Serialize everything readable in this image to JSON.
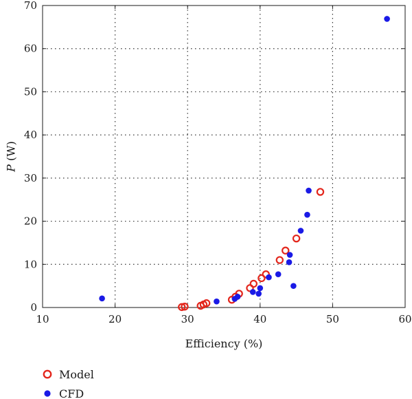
{
  "chart_data": {
    "type": "scatter",
    "xlabel": "Efficiency (%)",
    "ylabel_italic": "P",
    "ylabel_rest": " (W)",
    "xlim": [
      10,
      60
    ],
    "ylim": [
      0,
      70
    ],
    "xticks": [
      10,
      20,
      30,
      40,
      50,
      60
    ],
    "yticks": [
      0,
      10,
      20,
      30,
      40,
      50,
      60,
      70
    ],
    "grid": true,
    "grid_style": "dotted",
    "legend_position": "bottom-left, below plot",
    "series": [
      {
        "name": "Model",
        "marker": "open-circle",
        "color": "#e3261c",
        "points": [
          [
            29.2,
            0.1
          ],
          [
            29.6,
            0.2
          ],
          [
            31.8,
            0.4
          ],
          [
            32.2,
            0.7
          ],
          [
            32.6,
            1.0
          ],
          [
            36.1,
            1.8
          ],
          [
            36.6,
            2.5
          ],
          [
            37.1,
            3.2
          ],
          [
            38.6,
            4.5
          ],
          [
            39.1,
            5.5
          ],
          [
            40.2,
            6.8
          ],
          [
            40.8,
            7.7
          ],
          [
            42.7,
            11.0
          ],
          [
            43.5,
            13.2
          ],
          [
            45.0,
            16.0
          ],
          [
            48.3,
            26.8
          ]
        ]
      },
      {
        "name": "CFD",
        "marker": "filled-circle",
        "color": "#1a1ae6",
        "points": [
          [
            18.2,
            2.1
          ],
          [
            34.0,
            1.4
          ],
          [
            36.5,
            2.0
          ],
          [
            36.9,
            2.5
          ],
          [
            39.0,
            3.6
          ],
          [
            39.8,
            3.2
          ],
          [
            40.0,
            4.5
          ],
          [
            41.2,
            7.0
          ],
          [
            42.5,
            7.7
          ],
          [
            44.0,
            10.5
          ],
          [
            44.1,
            12.2
          ],
          [
            44.6,
            5.0
          ],
          [
            45.6,
            17.8
          ],
          [
            46.5,
            21.5
          ],
          [
            46.7,
            27.1
          ],
          [
            57.5,
            66.9
          ]
        ]
      }
    ]
  }
}
